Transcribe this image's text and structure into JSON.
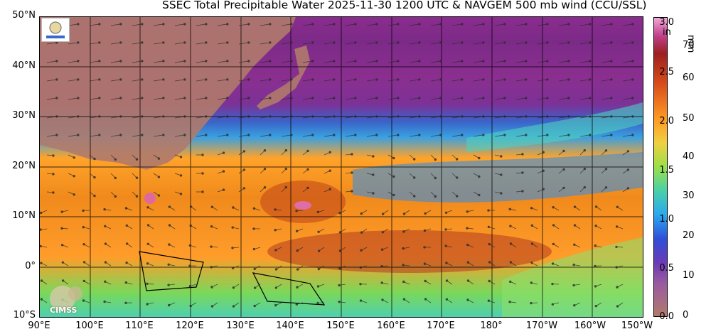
{
  "title": "SSEC Total Precipitable Water  2025-11-30 1200 UTC & NAVGEM 500 mb wind (CCU/SSL)",
  "latitude_labels": [
    "50°N",
    "40°N",
    "30°N",
    "20°N",
    "10°N",
    "0°",
    "10°S"
  ],
  "longitude_labels": [
    "90°E",
    "100°E",
    "110°E",
    "120°E",
    "130°E",
    "140°E",
    "150°E",
    "160°E",
    "170°E",
    "180°",
    "170°W",
    "160°W",
    "150°W"
  ],
  "colorbar": {
    "unit_left": "in",
    "unit_right": "mm",
    "inch_ticks": [
      "3.0",
      "2.5",
      "2.0",
      "1.5",
      "1.0",
      "0.5",
      "0.0"
    ],
    "mm_ticks": [
      "70",
      "60",
      "50",
      "40",
      "30",
      "20",
      "10",
      "0"
    ]
  },
  "logos": {
    "bottom_left": "CIMSS"
  },
  "colors": {
    "ocean_moist": "#f08a1c",
    "dry_purple": "#7d2e8c",
    "mid_blue": "#3aa0e0",
    "land": "#b07a6c"
  }
}
